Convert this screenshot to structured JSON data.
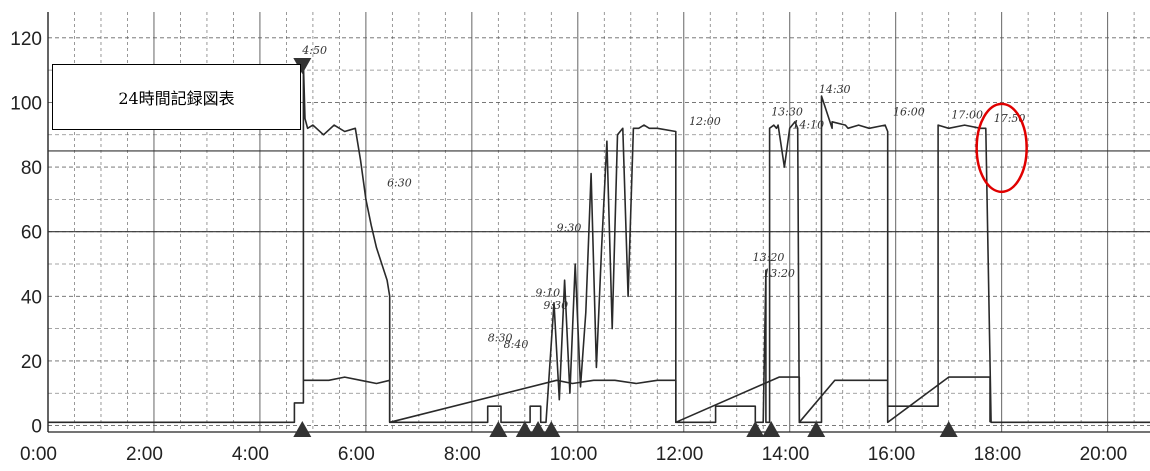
{
  "colors": {
    "line": "#2a2a2a",
    "grid": "#555555",
    "highlight": "#e00000",
    "background": "#ffffff"
  },
  "chart_data": {
    "type": "line",
    "title": "24時間記録図表",
    "xlim": [
      0,
      20.8
    ],
    "ylim": [
      -2,
      128
    ],
    "x_tick_values": [
      0,
      2,
      4,
      6,
      8,
      10,
      12,
      14,
      16,
      18,
      20
    ],
    "x_tick_labels": [
      "0:00",
      "2:00",
      "4:00",
      "6:00",
      "8:00",
      "10:00",
      "12:00",
      "14:00",
      "16:00",
      "18:00",
      "20:00"
    ],
    "y_tick_values": [
      0,
      20,
      40,
      60,
      80,
      100,
      120
    ],
    "y_tick_labels": [
      "0",
      "20",
      "40",
      "60",
      "80",
      "100",
      "120"
    ],
    "grid": true,
    "reference_lines": [
      85,
      60
    ],
    "series": [
      {
        "x": [
          0,
          4.65,
          4.65,
          4.82,
          4.82,
          4.85,
          4.9,
          5.0,
          5.2,
          5.4,
          5.6,
          5.8,
          5.9,
          6.0,
          6.1,
          6.2,
          6.3,
          6.4,
          6.45,
          6.45,
          8.3,
          8.3,
          8.55,
          8.55,
          9.1,
          9.1,
          9.3,
          9.3,
          9.4,
          9.55,
          9.65,
          9.75,
          9.85,
          9.95,
          10.05,
          10.15,
          10.25,
          10.35,
          10.45,
          10.55,
          10.65,
          10.75,
          10.85,
          10.95,
          11.05,
          11.15,
          11.25,
          11.35,
          11.5,
          11.85,
          11.85,
          12.1,
          12.6,
          12.6,
          13.35,
          13.35,
          13.45,
          13.5,
          13.55,
          13.55,
          13.62,
          13.62,
          13.7,
          13.75,
          13.78,
          13.9,
          14.0,
          14.1,
          14.15,
          14.18,
          14.35,
          14.5,
          14.55,
          14.6,
          14.6,
          14.8,
          14.8,
          15.05,
          15.1,
          15.3,
          15.5,
          15.8,
          15.85,
          15.85,
          16.8,
          16.8,
          17.0,
          17.3,
          17.6,
          17.7,
          17.8,
          17.8,
          20.8
        ],
        "y": [
          1,
          1,
          7,
          7,
          112,
          95,
          92,
          93,
          90,
          93,
          91,
          92,
          82,
          70,
          62,
          55,
          50,
          45,
          40,
          1,
          1,
          6,
          6,
          1,
          1,
          6,
          6,
          1,
          1,
          38,
          8,
          45,
          10,
          50,
          12,
          35,
          78,
          18,
          55,
          88,
          30,
          90,
          92,
          40,
          92,
          92,
          93,
          92,
          92,
          91,
          1,
          1,
          1,
          6,
          6,
          1,
          1,
          1,
          48,
          1,
          1,
          92,
          93,
          92,
          93,
          80,
          92,
          94,
          92,
          1,
          1,
          1,
          1,
          1,
          102,
          92,
          94,
          93,
          92,
          93,
          92,
          93,
          91,
          6,
          6,
          93,
          92,
          93,
          92,
          92,
          1,
          1,
          1
        ]
      },
      {
        "x": [
          4.82,
          5.0,
          5.3,
          5.6,
          5.9,
          6.2,
          6.45,
          6.45,
          9.6,
          9.9,
          10.3,
          10.7,
          11.1,
          11.5,
          11.85,
          11.85,
          13.8,
          14.0,
          14.18,
          14.18,
          14.85,
          15.0,
          15.85,
          15.85,
          17.0,
          17.5,
          17.78,
          17.78
        ],
        "y": [
          14,
          14,
          14,
          15,
          14,
          13,
          14,
          1,
          14,
          13,
          14,
          14,
          13,
          14,
          14,
          1,
          15,
          15,
          15,
          1,
          14,
          14,
          14,
          1,
          15,
          15,
          15,
          1
        ]
      }
    ],
    "markers_top": [
      4.8
    ],
    "markers_bottom": [
      4.8,
      8.5,
      9.0,
      9.25,
      9.5,
      13.35,
      13.65,
      14.5,
      17.0
    ],
    "annotations": [
      {
        "text": "4:50",
        "x": 4.8,
        "y": 115
      },
      {
        "text": "6:30",
        "x": 6.4,
        "y": 74
      },
      {
        "text": "8:30",
        "x": 8.3,
        "y": 26
      },
      {
        "text": "8:40",
        "x": 8.6,
        "y": 24
      },
      {
        "text": "9:10",
        "x": 9.2,
        "y": 40
      },
      {
        "text": "9:30",
        "x": 9.35,
        "y": 36
      },
      {
        "text": "9:30",
        "x": 9.6,
        "y": 60
      },
      {
        "text": "12:00",
        "x": 12.1,
        "y": 93
      },
      {
        "text": "13:20",
        "x": 13.3,
        "y": 51
      },
      {
        "text": "13:20",
        "x": 13.5,
        "y": 46
      },
      {
        "text": "13:30",
        "x": 13.65,
        "y": 96
      },
      {
        "text": "14:10",
        "x": 14.05,
        "y": 92
      },
      {
        "text": "14:30",
        "x": 14.55,
        "y": 103
      },
      {
        "text": "16:00",
        "x": 15.95,
        "y": 96
      },
      {
        "text": "17:00",
        "x": 17.05,
        "y": 95
      },
      {
        "text": "17:50",
        "x": 17.85,
        "y": 94
      }
    ],
    "highlight": {
      "x": 18.0,
      "y": 94
    }
  }
}
